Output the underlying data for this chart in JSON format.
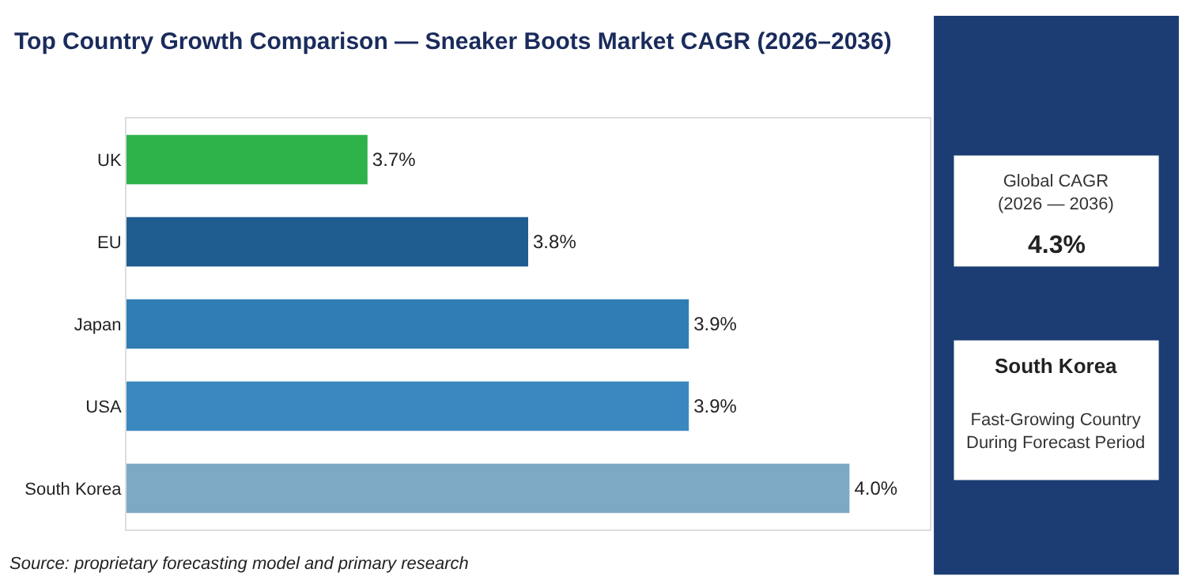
{
  "chart_data": {
    "type": "bar",
    "orientation": "horizontal",
    "title": "Top Country Growth Comparison — Sneaker Boots Market CAGR (2026–2036)",
    "categories": [
      "UK",
      "EU",
      "Japan",
      "USA",
      "South Korea"
    ],
    "values": [
      3.7,
      3.8,
      3.9,
      3.9,
      4.0
    ],
    "colors": [
      "#2db34a",
      "#1f5c8f",
      "#2f7db3",
      "#3a88bf",
      "#7ea9c5"
    ],
    "value_labels": [
      "3.7%",
      "3.8%",
      "3.9%",
      "3.9%",
      "4.0%"
    ],
    "xlim": [
      3.55,
      4.05
    ],
    "tick_labels": "y",
    "annotations": [
      "Source: proprietary forecasting model and primary research",
      "Global CAGR\n(2026 — 2036)",
      "4.3%",
      "South Korea",
      "Fast-Growing Country\nDuring Forecast Period"
    ]
  }
}
